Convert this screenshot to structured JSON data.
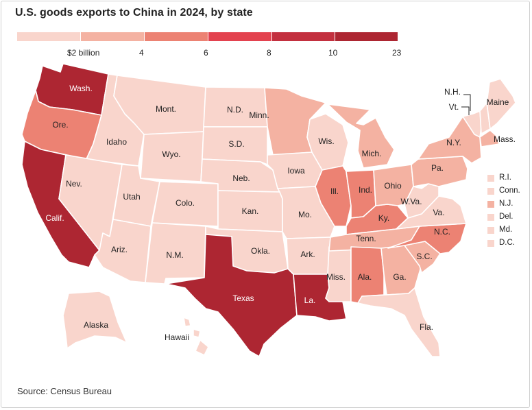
{
  "title": "U.S. goods exports to China in 2024, by state",
  "source": "Source: Census Bureau",
  "colors": {
    "c1": "#f9d5cc",
    "c2": "#f4b2a2",
    "c3": "#ec8273",
    "c4": "#e3424f",
    "c5": "#c3303f",
    "c6": "#ad2632",
    "border": "#ffffff"
  },
  "legend": {
    "labels": [
      "$2 billion",
      "4",
      "6",
      "8",
      "10",
      "23"
    ],
    "bins": [
      {
        "color": "#f9d5cc",
        "from": 0,
        "to": 2
      },
      {
        "color": "#f4b2a2",
        "from": 2,
        "to": 4
      },
      {
        "color": "#ec8273",
        "from": 4,
        "to": 6
      },
      {
        "color": "#e3424f",
        "from": 6,
        "to": 8
      },
      {
        "color": "#c3303f",
        "from": 8,
        "to": 10
      },
      {
        "color": "#ad2632",
        "from": 10,
        "to": 23
      }
    ]
  },
  "states": [
    {
      "label": "Wash.",
      "bin": 6
    },
    {
      "label": "Ore.",
      "bin": 3
    },
    {
      "label": "Calif.",
      "bin": 6
    },
    {
      "label": "Idaho",
      "bin": 1
    },
    {
      "label": "Nev.",
      "bin": 1
    },
    {
      "label": "Utah",
      "bin": 1
    },
    {
      "label": "Ariz.",
      "bin": 1
    },
    {
      "label": "Mont.",
      "bin": 1
    },
    {
      "label": "Wyo.",
      "bin": 1
    },
    {
      "label": "Colo.",
      "bin": 1
    },
    {
      "label": "N.M.",
      "bin": 1
    },
    {
      "label": "N.D.",
      "bin": 1
    },
    {
      "label": "S.D.",
      "bin": 1
    },
    {
      "label": "Neb.",
      "bin": 1
    },
    {
      "label": "Kan.",
      "bin": 1
    },
    {
      "label": "Okla.",
      "bin": 1
    },
    {
      "label": "Texas",
      "bin": 6
    },
    {
      "label": "Minn.",
      "bin": 2
    },
    {
      "label": "Iowa",
      "bin": 1
    },
    {
      "label": "Mo.",
      "bin": 1
    },
    {
      "label": "Ark.",
      "bin": 1
    },
    {
      "label": "La.",
      "bin": 6
    },
    {
      "label": "Wis.",
      "bin": 1
    },
    {
      "label": "Ill.",
      "bin": 3
    },
    {
      "label": "Miss.",
      "bin": 1
    },
    {
      "label": "Mich.",
      "bin": 2
    },
    {
      "label": "Ind.",
      "bin": 3
    },
    {
      "label": "Ky.",
      "bin": 3
    },
    {
      "label": "Tenn.",
      "bin": 2
    },
    {
      "label": "Ala.",
      "bin": 3
    },
    {
      "label": "Ohio",
      "bin": 2
    },
    {
      "label": "Ga.",
      "bin": 2
    },
    {
      "label": "Fla.",
      "bin": 1
    },
    {
      "label": "S.C.",
      "bin": 2
    },
    {
      "label": "N.C.",
      "bin": 3
    },
    {
      "label": "Va.",
      "bin": 1
    },
    {
      "label": "W.Va.",
      "bin": 1
    },
    {
      "label": "Pa.",
      "bin": 2
    },
    {
      "label": "N.Y.",
      "bin": 2
    },
    {
      "label": "Vt.",
      "bin": 1
    },
    {
      "label": "N.H.",
      "bin": 1
    },
    {
      "label": "Maine",
      "bin": 1
    },
    {
      "label": "Mass.",
      "bin": 2
    },
    {
      "label": "Alaska",
      "bin": 1
    },
    {
      "label": "Hawaii",
      "bin": 1
    }
  ],
  "side_states": [
    {
      "label": "R.I.",
      "bin": 1
    },
    {
      "label": "Conn.",
      "bin": 1
    },
    {
      "label": "N.J.",
      "bin": 2
    },
    {
      "label": "Del.",
      "bin": 1
    },
    {
      "label": "Md.",
      "bin": 1
    },
    {
      "label": "D.C.",
      "bin": 1
    }
  ]
}
